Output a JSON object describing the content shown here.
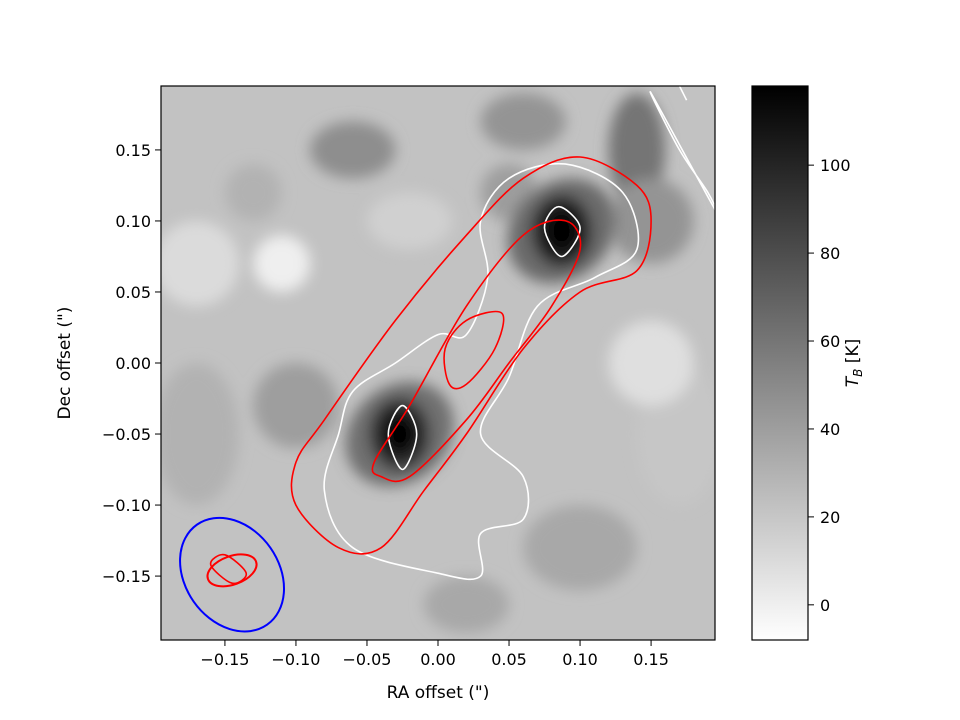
{
  "chart_data": {
    "type": "heatmap",
    "colormap": "gray_r",
    "xlabel": "RA offset (\")",
    "ylabel": "Dec offset (\")",
    "xlim": [
      -0.195,
      0.195
    ],
    "ylim": [
      -0.195,
      0.195
    ],
    "xticks": [
      -0.15,
      -0.1,
      -0.05,
      0.0,
      0.05,
      0.1,
      0.15
    ],
    "xtick_labels": [
      "−0.15",
      "−0.10",
      "−0.05",
      "0.00",
      "0.05",
      "0.10",
      "0.15"
    ],
    "yticks": [
      0.15,
      0.1,
      0.05,
      0.0,
      -0.05,
      -0.1,
      -0.15
    ],
    "ytick_labels": [
      "0.15",
      "0.10",
      "0.05",
      "0.00",
      "−0.05",
      "−0.10",
      "−0.15"
    ],
    "colorbar": {
      "label": "T_B [K]",
      "label_main": "T",
      "label_sub": "B",
      "label_unit": " [K]",
      "range": [
        -8,
        118
      ],
      "ticks": [
        0,
        20,
        40,
        60,
        80,
        100
      ],
      "tick_labels": [
        "0",
        "20",
        "40",
        "60",
        "80",
        "100"
      ]
    },
    "peaks": [
      {
        "x": 0.087,
        "y": 0.093,
        "tb": 118
      },
      {
        "x": -0.027,
        "y": -0.05,
        "tb": 115
      }
    ],
    "contours": [
      {
        "color": "#ffffff",
        "points": [
          [
            -0.06,
            -0.13
          ],
          [
            -0.08,
            -0.09
          ],
          [
            -0.07,
            -0.05
          ],
          [
            -0.06,
            -0.02
          ],
          [
            -0.03,
            0.0
          ],
          [
            0.0,
            0.02
          ],
          [
            0.02,
            0.02
          ],
          [
            0.035,
            0.06
          ],
          [
            0.03,
            0.1
          ],
          [
            0.05,
            0.13
          ],
          [
            0.09,
            0.14
          ],
          [
            0.13,
            0.12
          ],
          [
            0.14,
            0.08
          ],
          [
            0.11,
            0.06
          ],
          [
            0.07,
            0.04
          ],
          [
            0.05,
            -0.01
          ],
          [
            0.03,
            -0.05
          ],
          [
            0.06,
            -0.08
          ],
          [
            0.06,
            -0.11
          ],
          [
            0.03,
            -0.12
          ],
          [
            0.03,
            -0.15
          ],
          [
            0.0,
            -0.148
          ]
        ]
      },
      {
        "color": "#ffffff",
        "points": [
          [
            0.15,
            0.19
          ],
          [
            0.17,
            0.15
          ],
          [
            0.19,
            0.12
          ],
          [
            0.195,
            0.108
          ]
        ]
      },
      {
        "color": "#ffffff",
        "points": [
          [
            0.17,
            0.195
          ],
          [
            0.175,
            0.185
          ]
        ]
      },
      {
        "color": "#ffffff",
        "points": [
          [
            -0.035,
            -0.05
          ],
          [
            -0.025,
            -0.03
          ],
          [
            -0.015,
            -0.05
          ],
          [
            -0.025,
            -0.075
          ]
        ]
      },
      {
        "color": "#ffffff",
        "points": [
          [
            0.075,
            0.095
          ],
          [
            0.085,
            0.11
          ],
          [
            0.1,
            0.095
          ],
          [
            0.087,
            0.075
          ]
        ]
      },
      {
        "color": "#ff0000",
        "points": [
          [
            -0.1,
            -0.07
          ],
          [
            -0.08,
            -0.04
          ],
          [
            -0.03,
            0.03
          ],
          [
            0.02,
            0.09
          ],
          [
            0.06,
            0.13
          ],
          [
            0.1,
            0.145
          ],
          [
            0.14,
            0.125
          ],
          [
            0.15,
            0.1
          ],
          [
            0.14,
            0.065
          ],
          [
            0.1,
            0.05
          ],
          [
            0.06,
            0.01
          ],
          [
            0.02,
            -0.05
          ],
          [
            -0.01,
            -0.09
          ],
          [
            -0.04,
            -0.13
          ],
          [
            -0.07,
            -0.13
          ],
          [
            -0.1,
            -0.1
          ]
        ]
      },
      {
        "color": "#ff0000",
        "points": [
          [
            -0.045,
            -0.07
          ],
          [
            -0.02,
            -0.03
          ],
          [
            0.02,
            0.04
          ],
          [
            0.06,
            0.09
          ],
          [
            0.09,
            0.1
          ],
          [
            0.1,
            0.08
          ],
          [
            0.08,
            0.04
          ],
          [
            0.05,
            0.0
          ],
          [
            0.02,
            -0.04
          ],
          [
            -0.02,
            -0.08
          ],
          [
            -0.04,
            -0.08
          ]
        ]
      },
      {
        "color": "#ff0000",
        "points": [
          [
            0.005,
            0.01
          ],
          [
            0.02,
            0.03
          ],
          [
            0.045,
            0.035
          ],
          [
            0.04,
            0.01
          ],
          [
            0.02,
            -0.015
          ],
          [
            0.008,
            -0.015
          ]
        ]
      },
      {
        "color": "#ff0000",
        "points": [
          [
            -0.16,
            -0.142
          ],
          [
            -0.15,
            -0.135
          ],
          [
            -0.135,
            -0.148
          ],
          [
            -0.145,
            -0.155
          ]
        ]
      }
    ],
    "beams": [
      {
        "color": "#0000ff",
        "cx": -0.145,
        "cy": -0.149,
        "rx": 0.043,
        "ry": 0.033,
        "angle_deg": 55
      },
      {
        "color": "#ff0000",
        "cx": -0.145,
        "cy": -0.146,
        "rx": 0.018,
        "ry": 0.01,
        "angle_deg": -20
      }
    ]
  }
}
